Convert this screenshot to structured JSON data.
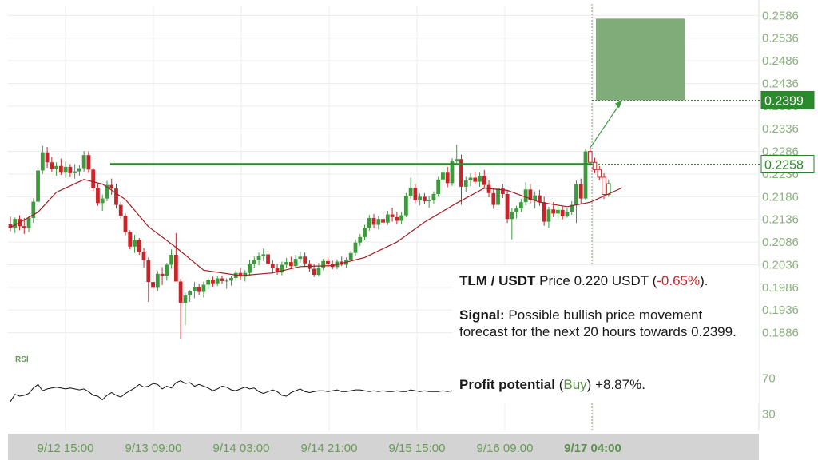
{
  "chart_data": {
    "type": "candlestick",
    "pair": "TLM / USDT",
    "y_ticks": [
      "0.2586",
      "0.2536",
      "0.2486",
      "0.2436",
      "0.2386",
      "0.2336",
      "0.2286",
      "0.2236",
      "0.2186",
      "0.2136",
      "0.2086",
      "0.2036",
      "0.1986",
      "0.1936",
      "0.1886"
    ],
    "x_ticks": [
      "9/12 15:00",
      "9/13 09:00",
      "9/14 03:00",
      "9/14 21:00",
      "9/15 15:00",
      "9/16 09:00",
      "9/17 04:00"
    ],
    "ylim": [
      0.1836,
      0.2606
    ],
    "resistance_level": 0.2258,
    "target_price": 0.2399,
    "current_price_label": "0.2258",
    "target_price_label": "0.2399",
    "target_zone": {
      "low": 0.2399,
      "high": 0.2579
    },
    "forecast_start_label": "9/17 04:00",
    "candles": [
      [
        0.2125,
        0.2142,
        0.211,
        0.2118
      ],
      [
        0.2118,
        0.214,
        0.2106,
        0.2137
      ],
      [
        0.2137,
        0.2145,
        0.2112,
        0.2121
      ],
      [
        0.2121,
        0.2139,
        0.2104,
        0.2117
      ],
      [
        0.2117,
        0.2143,
        0.2108,
        0.2139
      ],
      [
        0.2139,
        0.2182,
        0.2128,
        0.2175
      ],
      [
        0.2175,
        0.2252,
        0.2168,
        0.2244
      ],
      [
        0.2244,
        0.2298,
        0.2236,
        0.2284
      ],
      [
        0.2284,
        0.2296,
        0.225,
        0.2262
      ],
      [
        0.2262,
        0.2274,
        0.224,
        0.2248
      ],
      [
        0.2248,
        0.2262,
        0.2232,
        0.2254
      ],
      [
        0.2254,
        0.227,
        0.2234,
        0.2239
      ],
      [
        0.2239,
        0.2264,
        0.2228,
        0.2252
      ],
      [
        0.2252,
        0.2258,
        0.2229,
        0.2238
      ],
      [
        0.2238,
        0.2258,
        0.2226,
        0.2242
      ],
      [
        0.2242,
        0.2256,
        0.2232,
        0.2249
      ],
      [
        0.2249,
        0.2287,
        0.2241,
        0.2278
      ],
      [
        0.2278,
        0.2286,
        0.2238,
        0.2246
      ],
      [
        0.2246,
        0.225,
        0.2198,
        0.2206
      ],
      [
        0.2206,
        0.2214,
        0.2166,
        0.2172
      ],
      [
        0.2172,
        0.2191,
        0.2155,
        0.2182
      ],
      [
        0.2182,
        0.2221,
        0.2176,
        0.2212
      ],
      [
        0.2212,
        0.2226,
        0.219,
        0.2204
      ],
      [
        0.2204,
        0.2215,
        0.216,
        0.2168
      ],
      [
        0.2168,
        0.2175,
        0.2138,
        0.2144
      ],
      [
        0.2144,
        0.2149,
        0.2101,
        0.2108
      ],
      [
        0.2108,
        0.2112,
        0.207,
        0.2076
      ],
      [
        0.2076,
        0.2102,
        0.2062,
        0.209
      ],
      [
        0.209,
        0.2095,
        0.2058,
        0.2065
      ],
      [
        0.2065,
        0.2073,
        0.203,
        0.2046
      ],
      [
        0.2046,
        0.2052,
        0.1954,
        0.1998
      ],
      [
        0.1998,
        0.2012,
        0.1972,
        0.1985
      ],
      [
        0.1985,
        0.2022,
        0.1978,
        0.2016
      ],
      [
        0.2016,
        0.2031,
        0.1991,
        0.2012
      ],
      [
        0.2012,
        0.204,
        0.2001,
        0.2036
      ],
      [
        0.2036,
        0.207,
        0.2027,
        0.2058
      ],
      [
        0.2058,
        0.2106,
        0.1999,
        0.1999
      ],
      [
        0.1999,
        0.2005,
        0.1873,
        0.1952
      ],
      [
        0.1952,
        0.1974,
        0.1903,
        0.1968
      ],
      [
        0.1968,
        0.198,
        0.1954,
        0.1977
      ],
      [
        0.1977,
        0.1998,
        0.1962,
        0.1986
      ],
      [
        0.1986,
        0.1994,
        0.197,
        0.1976
      ],
      [
        0.1976,
        0.1999,
        0.1964,
        0.1992
      ],
      [
        0.1992,
        0.2008,
        0.1982,
        0.2003
      ],
      [
        0.2003,
        0.201,
        0.1986,
        0.1995
      ],
      [
        0.1995,
        0.2011,
        0.1989,
        0.2006
      ],
      [
        0.2006,
        0.2012,
        0.1994,
        0.2
      ],
      [
        0.2,
        0.2006,
        0.1983,
        0.2001
      ],
      [
        0.2001,
        0.2012,
        0.199,
        0.2007
      ],
      [
        0.2007,
        0.2024,
        0.2001,
        0.2018
      ],
      [
        0.2018,
        0.2029,
        0.2002,
        0.201
      ],
      [
        0.201,
        0.2024,
        0.1999,
        0.2018
      ],
      [
        0.2018,
        0.2047,
        0.2012,
        0.2037
      ],
      [
        0.2037,
        0.2054,
        0.2029,
        0.2046
      ],
      [
        0.2046,
        0.2063,
        0.2035,
        0.2055
      ],
      [
        0.2055,
        0.2072,
        0.2044,
        0.2059
      ],
      [
        0.2059,
        0.2067,
        0.2032,
        0.2038
      ],
      [
        0.2038,
        0.2046,
        0.2017,
        0.2028
      ],
      [
        0.2028,
        0.2038,
        0.2014,
        0.2019
      ],
      [
        0.2019,
        0.2043,
        0.2013,
        0.2036
      ],
      [
        0.2036,
        0.2051,
        0.2029,
        0.2042
      ],
      [
        0.2042,
        0.2054,
        0.2026,
        0.2033
      ],
      [
        0.2033,
        0.2058,
        0.2028,
        0.2049
      ],
      [
        0.2049,
        0.2065,
        0.2041,
        0.2054
      ],
      [
        0.2054,
        0.2063,
        0.2032,
        0.2039
      ],
      [
        0.2039,
        0.2046,
        0.2021,
        0.2027
      ],
      [
        0.2027,
        0.2038,
        0.2009,
        0.2014
      ],
      [
        0.2014,
        0.204,
        0.201,
        0.203
      ],
      [
        0.203,
        0.2049,
        0.2024,
        0.2044
      ],
      [
        0.2044,
        0.2052,
        0.2031,
        0.2037
      ],
      [
        0.2037,
        0.2045,
        0.2026,
        0.2031
      ],
      [
        0.2031,
        0.2048,
        0.2026,
        0.2043
      ],
      [
        0.2043,
        0.2054,
        0.2033,
        0.2036
      ],
      [
        0.2036,
        0.2052,
        0.2029,
        0.2047
      ],
      [
        0.2047,
        0.2067,
        0.2042,
        0.2062
      ],
      [
        0.2062,
        0.2092,
        0.2056,
        0.2085
      ],
      [
        0.2085,
        0.2104,
        0.2078,
        0.2097
      ],
      [
        0.2097,
        0.2124,
        0.209,
        0.2118
      ],
      [
        0.2118,
        0.2146,
        0.2111,
        0.2139
      ],
      [
        0.2139,
        0.2148,
        0.2116,
        0.2124
      ],
      [
        0.2124,
        0.2143,
        0.2114,
        0.2137
      ],
      [
        0.2137,
        0.2152,
        0.2119,
        0.2129
      ],
      [
        0.2129,
        0.2155,
        0.2124,
        0.2147
      ],
      [
        0.2147,
        0.2162,
        0.2131,
        0.2141
      ],
      [
        0.2141,
        0.2153,
        0.2126,
        0.2133
      ],
      [
        0.2133,
        0.2152,
        0.2126,
        0.2145
      ],
      [
        0.2145,
        0.2194,
        0.2141,
        0.2188
      ],
      [
        0.2188,
        0.2228,
        0.2182,
        0.2206
      ],
      [
        0.2206,
        0.2214,
        0.2172,
        0.2178
      ],
      [
        0.2178,
        0.2193,
        0.2167,
        0.2186
      ],
      [
        0.2186,
        0.2194,
        0.2169,
        0.2176
      ],
      [
        0.2176,
        0.2187,
        0.2162,
        0.2179
      ],
      [
        0.2179,
        0.2198,
        0.2171,
        0.2192
      ],
      [
        0.2192,
        0.223,
        0.2186,
        0.2224
      ],
      [
        0.2224,
        0.2246,
        0.2217,
        0.2239
      ],
      [
        0.2239,
        0.2252,
        0.2207,
        0.2216
      ],
      [
        0.2216,
        0.2271,
        0.221,
        0.2264
      ],
      [
        0.2264,
        0.2301,
        0.2258,
        0.2269
      ],
      [
        0.2269,
        0.2279,
        0.2168,
        0.2208
      ],
      [
        0.2208,
        0.223,
        0.2196,
        0.2222
      ],
      [
        0.2222,
        0.2238,
        0.2209,
        0.2228
      ],
      [
        0.2228,
        0.224,
        0.2214,
        0.2219
      ],
      [
        0.2219,
        0.2239,
        0.2208,
        0.2232
      ],
      [
        0.2232,
        0.2245,
        0.2206,
        0.2212
      ],
      [
        0.2212,
        0.2222,
        0.2185,
        0.2194
      ],
      [
        0.2194,
        0.2204,
        0.2159,
        0.2168
      ],
      [
        0.2168,
        0.2211,
        0.216,
        0.2204
      ],
      [
        0.2204,
        0.2214,
        0.2183,
        0.2192
      ],
      [
        0.2192,
        0.2199,
        0.2128,
        0.2137
      ],
      [
        0.2137,
        0.2162,
        0.2092,
        0.2153
      ],
      [
        0.2153,
        0.2166,
        0.2138,
        0.216
      ],
      [
        0.216,
        0.2181,
        0.2152,
        0.2174
      ],
      [
        0.2174,
        0.2218,
        0.2167,
        0.2202
      ],
      [
        0.2202,
        0.2214,
        0.217,
        0.2179
      ],
      [
        0.2179,
        0.2198,
        0.216,
        0.2189
      ],
      [
        0.2189,
        0.2201,
        0.2166,
        0.2174
      ],
      [
        0.2174,
        0.2186,
        0.2122,
        0.2131
      ],
      [
        0.2131,
        0.2164,
        0.2117,
        0.2158
      ],
      [
        0.2158,
        0.2174,
        0.2141,
        0.2149
      ],
      [
        0.2149,
        0.2166,
        0.2138,
        0.2157
      ],
      [
        0.2157,
        0.2166,
        0.2136,
        0.2143
      ],
      [
        0.2143,
        0.2162,
        0.214,
        0.2153
      ],
      [
        0.2153,
        0.2176,
        0.2146,
        0.2168
      ],
      [
        0.2168,
        0.2222,
        0.2128,
        0.2214
      ],
      [
        0.2214,
        0.2226,
        0.217,
        0.2182
      ],
      [
        0.2182,
        0.2292,
        0.2178,
        0.2286
      ],
      [
        0.2286,
        0.2294,
        0.2254,
        0.2262
      ],
      [
        0.2262,
        0.2272,
        0.2238,
        0.2246
      ],
      [
        0.2246,
        0.2254,
        0.2222,
        0.2229
      ],
      [
        0.2229,
        0.2238,
        0.2181,
        0.2191
      ],
      [
        0.2191,
        0.2224,
        0.2186,
        0.2215
      ]
    ],
    "moving_average": [
      [
        0,
        0.2118
      ],
      [
        6,
        0.2152
      ],
      [
        10,
        0.2196
      ],
      [
        16,
        0.2224
      ],
      [
        20,
        0.2214
      ],
      [
        25,
        0.218
      ],
      [
        30,
        0.212
      ],
      [
        36,
        0.2074
      ],
      [
        42,
        0.2024
      ],
      [
        50,
        0.2012
      ],
      [
        57,
        0.2018
      ],
      [
        63,
        0.2032
      ],
      [
        70,
        0.2034
      ],
      [
        77,
        0.2052
      ],
      [
        84,
        0.2086
      ],
      [
        90,
        0.213
      ],
      [
        97,
        0.2172
      ],
      [
        103,
        0.2205
      ],
      [
        108,
        0.22
      ],
      [
        115,
        0.2174
      ],
      [
        121,
        0.2164
      ],
      [
        126,
        0.2174
      ],
      [
        133,
        0.2206
      ]
    ],
    "rsi": {
      "label": "RSI",
      "y_ticks": [
        "70",
        "30"
      ],
      "ylim": [
        20,
        80
      ],
      "values": [
        44,
        52,
        50,
        51,
        53,
        59,
        63,
        56,
        58,
        59,
        60,
        59,
        58,
        59,
        58,
        57,
        58,
        55,
        51,
        50,
        46,
        51,
        54,
        51,
        49,
        53,
        56,
        59,
        63,
        60,
        61,
        64,
        63,
        58,
        61,
        59,
        65,
        67,
        64,
        65,
        61,
        63,
        61,
        59,
        56,
        58,
        61,
        60,
        57,
        56,
        58,
        60,
        58,
        59,
        55,
        53,
        55,
        57,
        55,
        51,
        50,
        54,
        56,
        58,
        55,
        54,
        55,
        56,
        56,
        55,
        56,
        57,
        55,
        55,
        56,
        57,
        57,
        56,
        55,
        56,
        55,
        56,
        55,
        55,
        56,
        55,
        55,
        57,
        56,
        55,
        56,
        55,
        55,
        55,
        56,
        55,
        56,
        55,
        55,
        55,
        56,
        55,
        55,
        55,
        55,
        55,
        55,
        55,
        55,
        55,
        55,
        55,
        55,
        55
      ]
    }
  },
  "info": {
    "pair": "TLM / USDT",
    "price_word": "Price",
    "price_value": "0.220 USDT",
    "change_open": "(",
    "change": "-0.65%",
    "change_close": ").",
    "signal_label": "Signal:",
    "signal_text": "Possible bullish price movement forecast for the next 20 hours towards 0.2399.",
    "profit_label": "Profit potential",
    "profit_open": "(",
    "profit_action": "Buy",
    "profit_close": ")",
    "profit_value": "+8.87%."
  },
  "colors": {
    "up": "#3d9a3d",
    "down": "#c8242a",
    "ma": "#a31e22",
    "resistance": "#2b8a2b",
    "target_zone": "#7fac78",
    "axis_text": "#8bb07c",
    "x_band": "#d3d3d3"
  }
}
